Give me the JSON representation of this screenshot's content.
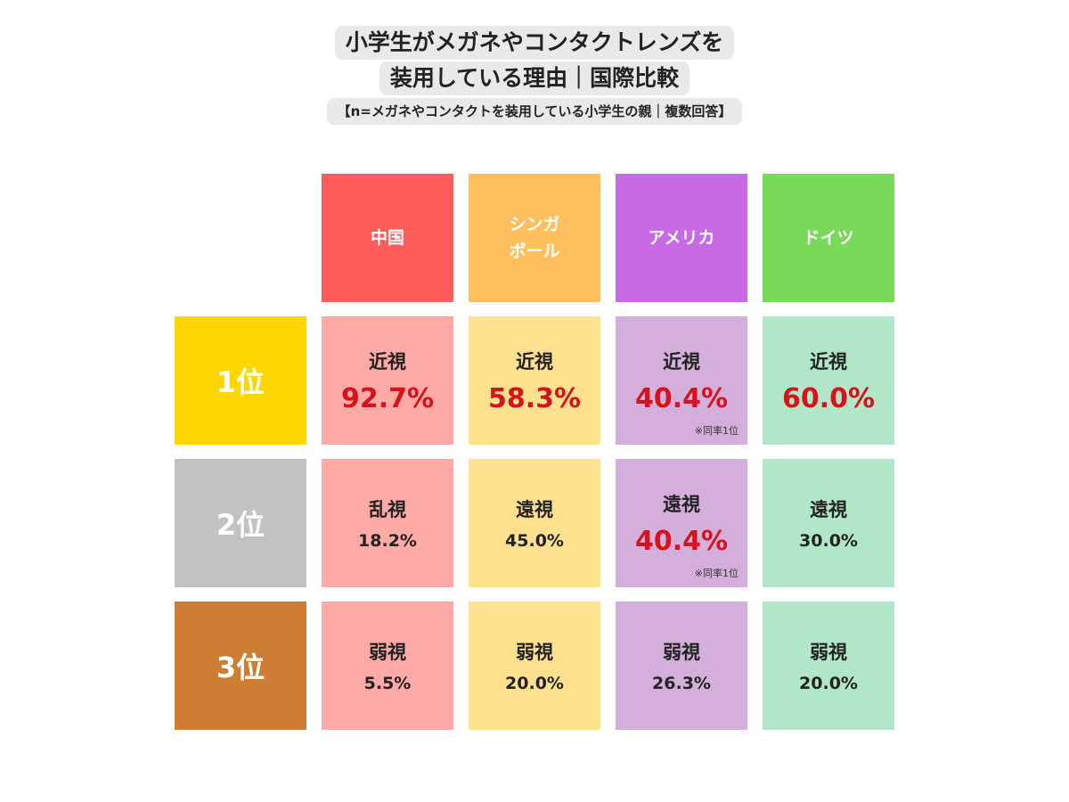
{
  "title": {
    "line1": "小学生がメガネやコンタクトレンズを",
    "line2": "装用している理由｜国際比較",
    "subtitle": "【n=メガネやコンタクトを装用している小学生の親｜複数回答】"
  },
  "chart_data": {
    "type": "table",
    "countries": [
      {
        "name": "中国",
        "color": "#ff5b5b",
        "cell_color": "#ffaaa6"
      },
      {
        "name": "シンガ\nポール",
        "color": "#ffbf5c",
        "cell_color": "#fde18f"
      },
      {
        "name": "アメリカ",
        "color": "#c76ae3",
        "cell_color": "#d4afdc"
      },
      {
        "name": "ドイツ",
        "color": "#79d958",
        "cell_color": "#b1e7c8"
      }
    ],
    "ranks": [
      {
        "label": "1位",
        "color": "#ffd600"
      },
      {
        "label": "2位",
        "color": "#c2c2c2"
      },
      {
        "label": "3位",
        "color": "#cd7d34"
      }
    ],
    "cells": [
      [
        {
          "reason": "近視",
          "value": "92.7%",
          "highlight": true,
          "note": ""
        },
        {
          "reason": "近視",
          "value": "58.3%",
          "highlight": true,
          "note": ""
        },
        {
          "reason": "近視",
          "value": "40.4%",
          "highlight": true,
          "note": "※同率1位"
        },
        {
          "reason": "近視",
          "value": "60.0%",
          "highlight": true,
          "note": ""
        }
      ],
      [
        {
          "reason": "乱視",
          "value": "18.2%",
          "highlight": false,
          "note": ""
        },
        {
          "reason": "遠視",
          "value": "45.0%",
          "highlight": false,
          "note": ""
        },
        {
          "reason": "遠視",
          "value": "40.4%",
          "highlight": true,
          "note": "※同率1位"
        },
        {
          "reason": "遠視",
          "value": "30.0%",
          "highlight": false,
          "note": ""
        }
      ],
      [
        {
          "reason": "弱視",
          "value": "5.5%",
          "highlight": false,
          "note": ""
        },
        {
          "reason": "弱視",
          "value": "20.0%",
          "highlight": false,
          "note": ""
        },
        {
          "reason": "弱視",
          "value": "26.3%",
          "highlight": false,
          "note": ""
        },
        {
          "reason": "弱視",
          "value": "20.0%",
          "highlight": false,
          "note": ""
        }
      ]
    ]
  }
}
